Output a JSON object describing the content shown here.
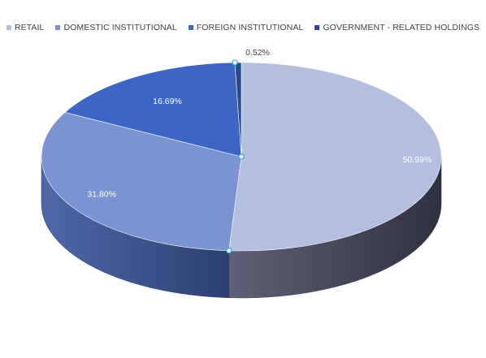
{
  "chart_data": {
    "type": "pie",
    "style": "3d",
    "title": "",
    "legend_position": "top",
    "categories": [
      "RETAIL",
      "DOMESTIC INSTITUTIONAL",
      "FOREIGN INSTITUTIONAL",
      "GOVERNMENT - RELATED HOLDINGS"
    ],
    "values": [
      50.99,
      31.8,
      16.69,
      0.52
    ],
    "data_labels": [
      "50.99%",
      "31.80%",
      "16.69%",
      "0.52%"
    ],
    "colors": [
      "#b4bfe0",
      "#7b93d3",
      "#3d66c4",
      "#2a4a8c"
    ]
  }
}
